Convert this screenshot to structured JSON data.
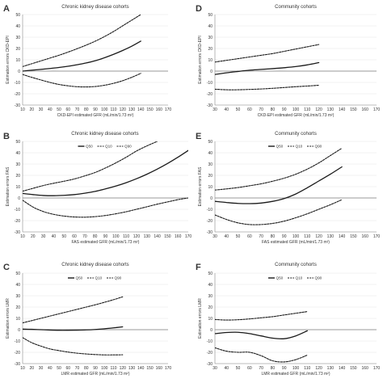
{
  "panels": [
    {
      "letter": "A",
      "title": "Chronic kidney disease cohorts",
      "xlabel": "CKD-EPI estimated GFR (mL/min/1.73 m²)",
      "ylabel": "Estimation errors CKD-EPI",
      "legend": false,
      "xticks": [
        10,
        20,
        30,
        40,
        50,
        60,
        70,
        80,
        90,
        100,
        110,
        120,
        130,
        140,
        150,
        160,
        170
      ],
      "yticks": [
        -30,
        -20,
        -10,
        0,
        10,
        20,
        30,
        40,
        50
      ],
      "chart_data": {
        "type": "line",
        "xlim": [
          10,
          170
        ],
        "ylim": [
          -30,
          50
        ],
        "series": [
          {
            "name": "Q50",
            "style": "solid",
            "x": [
              10,
              20,
              30,
              40,
              50,
              60,
              70,
              80,
              90,
              100,
              110,
              120,
              130,
              140
            ],
            "values": [
              0,
              0.8,
              1.5,
              2.3,
              3.2,
              4.3,
              5.6,
              7.2,
              9.2,
              11.8,
              14.8,
              18.2,
              22,
              26.5
            ]
          },
          {
            "name": "Q10",
            "style": "dashed",
            "x": [
              10,
              20,
              30,
              40,
              50,
              60,
              70,
              80,
              90,
              100,
              110,
              120,
              130,
              140
            ],
            "values": [
              -3,
              -5.5,
              -7.8,
              -10,
              -11.8,
              -13,
              -13.8,
              -14,
              -13.6,
              -12.5,
              -10.8,
              -8.5,
              -5.5,
              -2
            ]
          },
          {
            "name": "Q90",
            "style": "dashed",
            "x": [
              10,
              20,
              30,
              40,
              50,
              60,
              70,
              80,
              90,
              100,
              110,
              120,
              130,
              140
            ],
            "values": [
              4,
              6.5,
              9,
              11.5,
              14,
              16.8,
              19.8,
              23,
              26.5,
              30.5,
              35,
              40,
              45,
              50
            ]
          }
        ]
      }
    },
    {
      "letter": "D",
      "title": "Community cohorts",
      "xlabel": "CKD-EPI estimated GFR (mL/min/1.73 m²)",
      "ylabel": "Estimation errors CKD-EPI",
      "legend": false,
      "xticks": [
        30,
        40,
        50,
        60,
        70,
        80,
        90,
        100,
        110,
        120,
        130,
        140,
        150,
        160,
        170
      ],
      "yticks": [
        -30,
        -20,
        -10,
        0,
        10,
        20,
        30,
        40,
        50
      ],
      "chart_data": {
        "type": "line",
        "xlim": [
          30,
          170
        ],
        "ylim": [
          -30,
          50
        ],
        "series": [
          {
            "name": "Q50",
            "style": "solid",
            "x": [
              30,
              40,
              50,
              60,
              70,
              80,
              90,
              100,
              110,
              120
            ],
            "values": [
              -3,
              -1.5,
              -0.3,
              0.8,
              1.5,
              2.2,
              3,
              4,
              5.5,
              7.5
            ]
          },
          {
            "name": "Q10",
            "style": "dashed",
            "x": [
              30,
              40,
              50,
              60,
              70,
              80,
              90,
              100,
              110,
              120
            ],
            "values": [
              -16,
              -16.5,
              -16.5,
              -16.2,
              -15.8,
              -15.2,
              -14.5,
              -13.8,
              -13.2,
              -12.5
            ]
          },
          {
            "name": "Q90",
            "style": "dashed",
            "x": [
              30,
              40,
              50,
              60,
              70,
              80,
              90,
              100,
              110,
              120
            ],
            "values": [
              8,
              9.5,
              11,
              12.5,
              14,
              15.5,
              17.5,
              19.5,
              21.5,
              23.5
            ]
          }
        ]
      }
    },
    {
      "letter": "B",
      "title": "Chronic kidney disease cohorts",
      "xlabel": "FAS estimated GFR (mL/min/1.73 m²)",
      "ylabel": "Estimation errors FAS",
      "legend": true,
      "legend_labels": [
        "Q50",
        "Q10",
        "Q90"
      ],
      "xticks": [
        10,
        20,
        30,
        40,
        50,
        60,
        70,
        80,
        90,
        100,
        110,
        120,
        130,
        140,
        150,
        160,
        170
      ],
      "yticks": [
        -30,
        -20,
        -10,
        0,
        10,
        20,
        30,
        40,
        50
      ],
      "chart_data": {
        "type": "line",
        "xlim": [
          10,
          170
        ],
        "ylim": [
          -30,
          50
        ],
        "series": [
          {
            "name": "Q50",
            "style": "solid",
            "x": [
              10,
              20,
              30,
              40,
              50,
              60,
              70,
              80,
              90,
              100,
              110,
              120,
              130,
              140,
              150,
              160,
              170
            ],
            "values": [
              4,
              3,
              2.2,
              2,
              2.3,
              3,
              4.2,
              5.8,
              8,
              10.5,
              13.5,
              17,
              21,
              25.5,
              30.5,
              36,
              42
            ]
          },
          {
            "name": "Q10",
            "style": "dashed",
            "x": [
              10,
              20,
              30,
              40,
              50,
              60,
              70,
              80,
              90,
              100,
              110,
              120,
              130,
              140,
              150,
              160,
              170
            ],
            "values": [
              -2,
              -8,
              -12,
              -14.5,
              -16,
              -16.8,
              -17,
              -16.5,
              -15.5,
              -14,
              -12.2,
              -10,
              -7.8,
              -5.5,
              -3.5,
              -1.5,
              0
            ]
          },
          {
            "name": "Q90",
            "style": "dashed",
            "x": [
              10,
              20,
              30,
              40,
              50,
              60,
              70,
              80,
              90,
              100,
              110,
              120,
              130,
              140
            ],
            "values": [
              6,
              8.5,
              11,
              13,
              14.8,
              16.8,
              19.5,
              22.5,
              26.5,
              31,
              36,
              41.5,
              46,
              50
            ]
          }
        ]
      }
    },
    {
      "letter": "E",
      "title": "Community cohorts",
      "xlabel": "FAS estimated GFR (mL/min/1.73 m²)",
      "ylabel": "Estimation errors FAS",
      "legend": true,
      "legend_labels": [
        "Q50",
        "Q10",
        "Q90"
      ],
      "xticks": [
        30,
        40,
        50,
        60,
        70,
        80,
        90,
        100,
        110,
        120,
        130,
        140,
        150,
        160,
        170
      ],
      "yticks": [
        -30,
        -20,
        -10,
        0,
        10,
        20,
        30,
        40,
        50
      ],
      "chart_data": {
        "type": "line",
        "xlim": [
          30,
          170
        ],
        "ylim": [
          -30,
          50
        ],
        "series": [
          {
            "name": "Q50",
            "style": "solid",
            "x": [
              30,
              40,
              50,
              60,
              70,
              80,
              90,
              100,
              110,
              120,
              130,
              140
            ],
            "values": [
              -3,
              -4,
              -4.8,
              -5,
              -4.5,
              -3,
              -0.5,
              3.5,
              9,
              15,
              21,
              27.5
            ]
          },
          {
            "name": "Q10",
            "style": "dashed",
            "x": [
              30,
              40,
              50,
              60,
              70,
              80,
              90,
              100,
              110,
              120,
              130,
              140
            ],
            "values": [
              -15,
              -19,
              -22,
              -23.5,
              -23.5,
              -22.5,
              -20.5,
              -17.5,
              -14,
              -10,
              -6,
              -1.5
            ]
          },
          {
            "name": "Q90",
            "style": "dashed",
            "x": [
              30,
              40,
              50,
              60,
              70,
              80,
              90,
              100,
              110,
              120,
              130,
              140
            ],
            "values": [
              7,
              8,
              9.2,
              10.8,
              12.5,
              14.8,
              17.5,
              21,
              25.5,
              31,
              37.5,
              44
            ]
          }
        ]
      }
    },
    {
      "letter": "C",
      "title": "Chronic kidney disease cohorts",
      "xlabel": "LMR estimated GFR (mL/min/1.73 m²)",
      "ylabel": "Estimation errors LMR",
      "legend": true,
      "legend_labels": [
        "Q50",
        "Q10",
        "Q90"
      ],
      "xticks": [
        10,
        20,
        30,
        40,
        50,
        60,
        70,
        80,
        90,
        100,
        110,
        120,
        130,
        140,
        150,
        160,
        170
      ],
      "yticks": [
        -30,
        -20,
        -10,
        0,
        10,
        20,
        30,
        40,
        50
      ],
      "chart_data": {
        "type": "line",
        "xlim": [
          10,
          170
        ],
        "ylim": [
          -30,
          50
        ],
        "series": [
          {
            "name": "Q50",
            "style": "solid",
            "x": [
              10,
              20,
              30,
              40,
              50,
              60,
              70,
              80,
              90,
              100,
              110,
              120
            ],
            "values": [
              0.5,
              0.3,
              0,
              -0.3,
              -0.5,
              -0.5,
              -0.4,
              -0.2,
              0.2,
              0.8,
              1.6,
              2.5
            ]
          },
          {
            "name": "Q10",
            "style": "dashed",
            "x": [
              10,
              20,
              30,
              40,
              50,
              60,
              70,
              80,
              90,
              100,
              110,
              120
            ],
            "values": [
              -7,
              -11.5,
              -14.5,
              -17,
              -18.5,
              -19.8,
              -20.8,
              -21.5,
              -22,
              -22.3,
              -22.3,
              -22.2
            ]
          },
          {
            "name": "Q90",
            "style": "dashed",
            "x": [
              10,
              20,
              30,
              40,
              50,
              60,
              70,
              80,
              90,
              100,
              110,
              120
            ],
            "values": [
              6,
              8,
              10,
              12,
              14,
              16,
              18,
              20,
              22,
              24.2,
              26.5,
              29
            ]
          }
        ]
      }
    },
    {
      "letter": "F",
      "title": "Community cohorts",
      "xlabel": "LMR estimated GFR (mL/min/1.73 m²)",
      "ylabel": "Estimation errors LMR",
      "legend": true,
      "legend_labels": [
        "Q50",
        "Q10",
        "Q90"
      ],
      "xticks": [
        30,
        40,
        50,
        60,
        70,
        80,
        90,
        100,
        110,
        120,
        130,
        140,
        150,
        160,
        170
      ],
      "yticks": [
        -30,
        -20,
        -10,
        0,
        10,
        20,
        30,
        40,
        50
      ],
      "chart_data": {
        "type": "line",
        "xlim": [
          30,
          170
        ],
        "ylim": [
          -30,
          50
        ],
        "series": [
          {
            "name": "Q50",
            "style": "solid",
            "x": [
              30,
              40,
              50,
              60,
              70,
              80,
              90,
              100,
              110
            ],
            "values": [
              -3.5,
              -2.5,
              -2.3,
              -3.5,
              -5.5,
              -7.5,
              -8,
              -5.5,
              -1
            ]
          },
          {
            "name": "Q10",
            "style": "dashed",
            "x": [
              30,
              40,
              50,
              60,
              70,
              80,
              90,
              100,
              110
            ],
            "values": [
              -16,
              -19,
              -20,
              -20,
              -23,
              -27.5,
              -28.5,
              -26.5,
              -22.5
            ]
          },
          {
            "name": "Q90",
            "style": "dashed",
            "x": [
              30,
              40,
              50,
              60,
              70,
              80,
              90,
              100,
              110
            ],
            "values": [
              9,
              8.5,
              8.8,
              9.5,
              10.5,
              11.5,
              13,
              14.5,
              16
            ]
          }
        ]
      }
    }
  ],
  "colors": {
    "series_line": "#1a1a1a",
    "zero_line": "#9a9a9a",
    "grid": "#e6e6e6",
    "axis": "#888888"
  }
}
